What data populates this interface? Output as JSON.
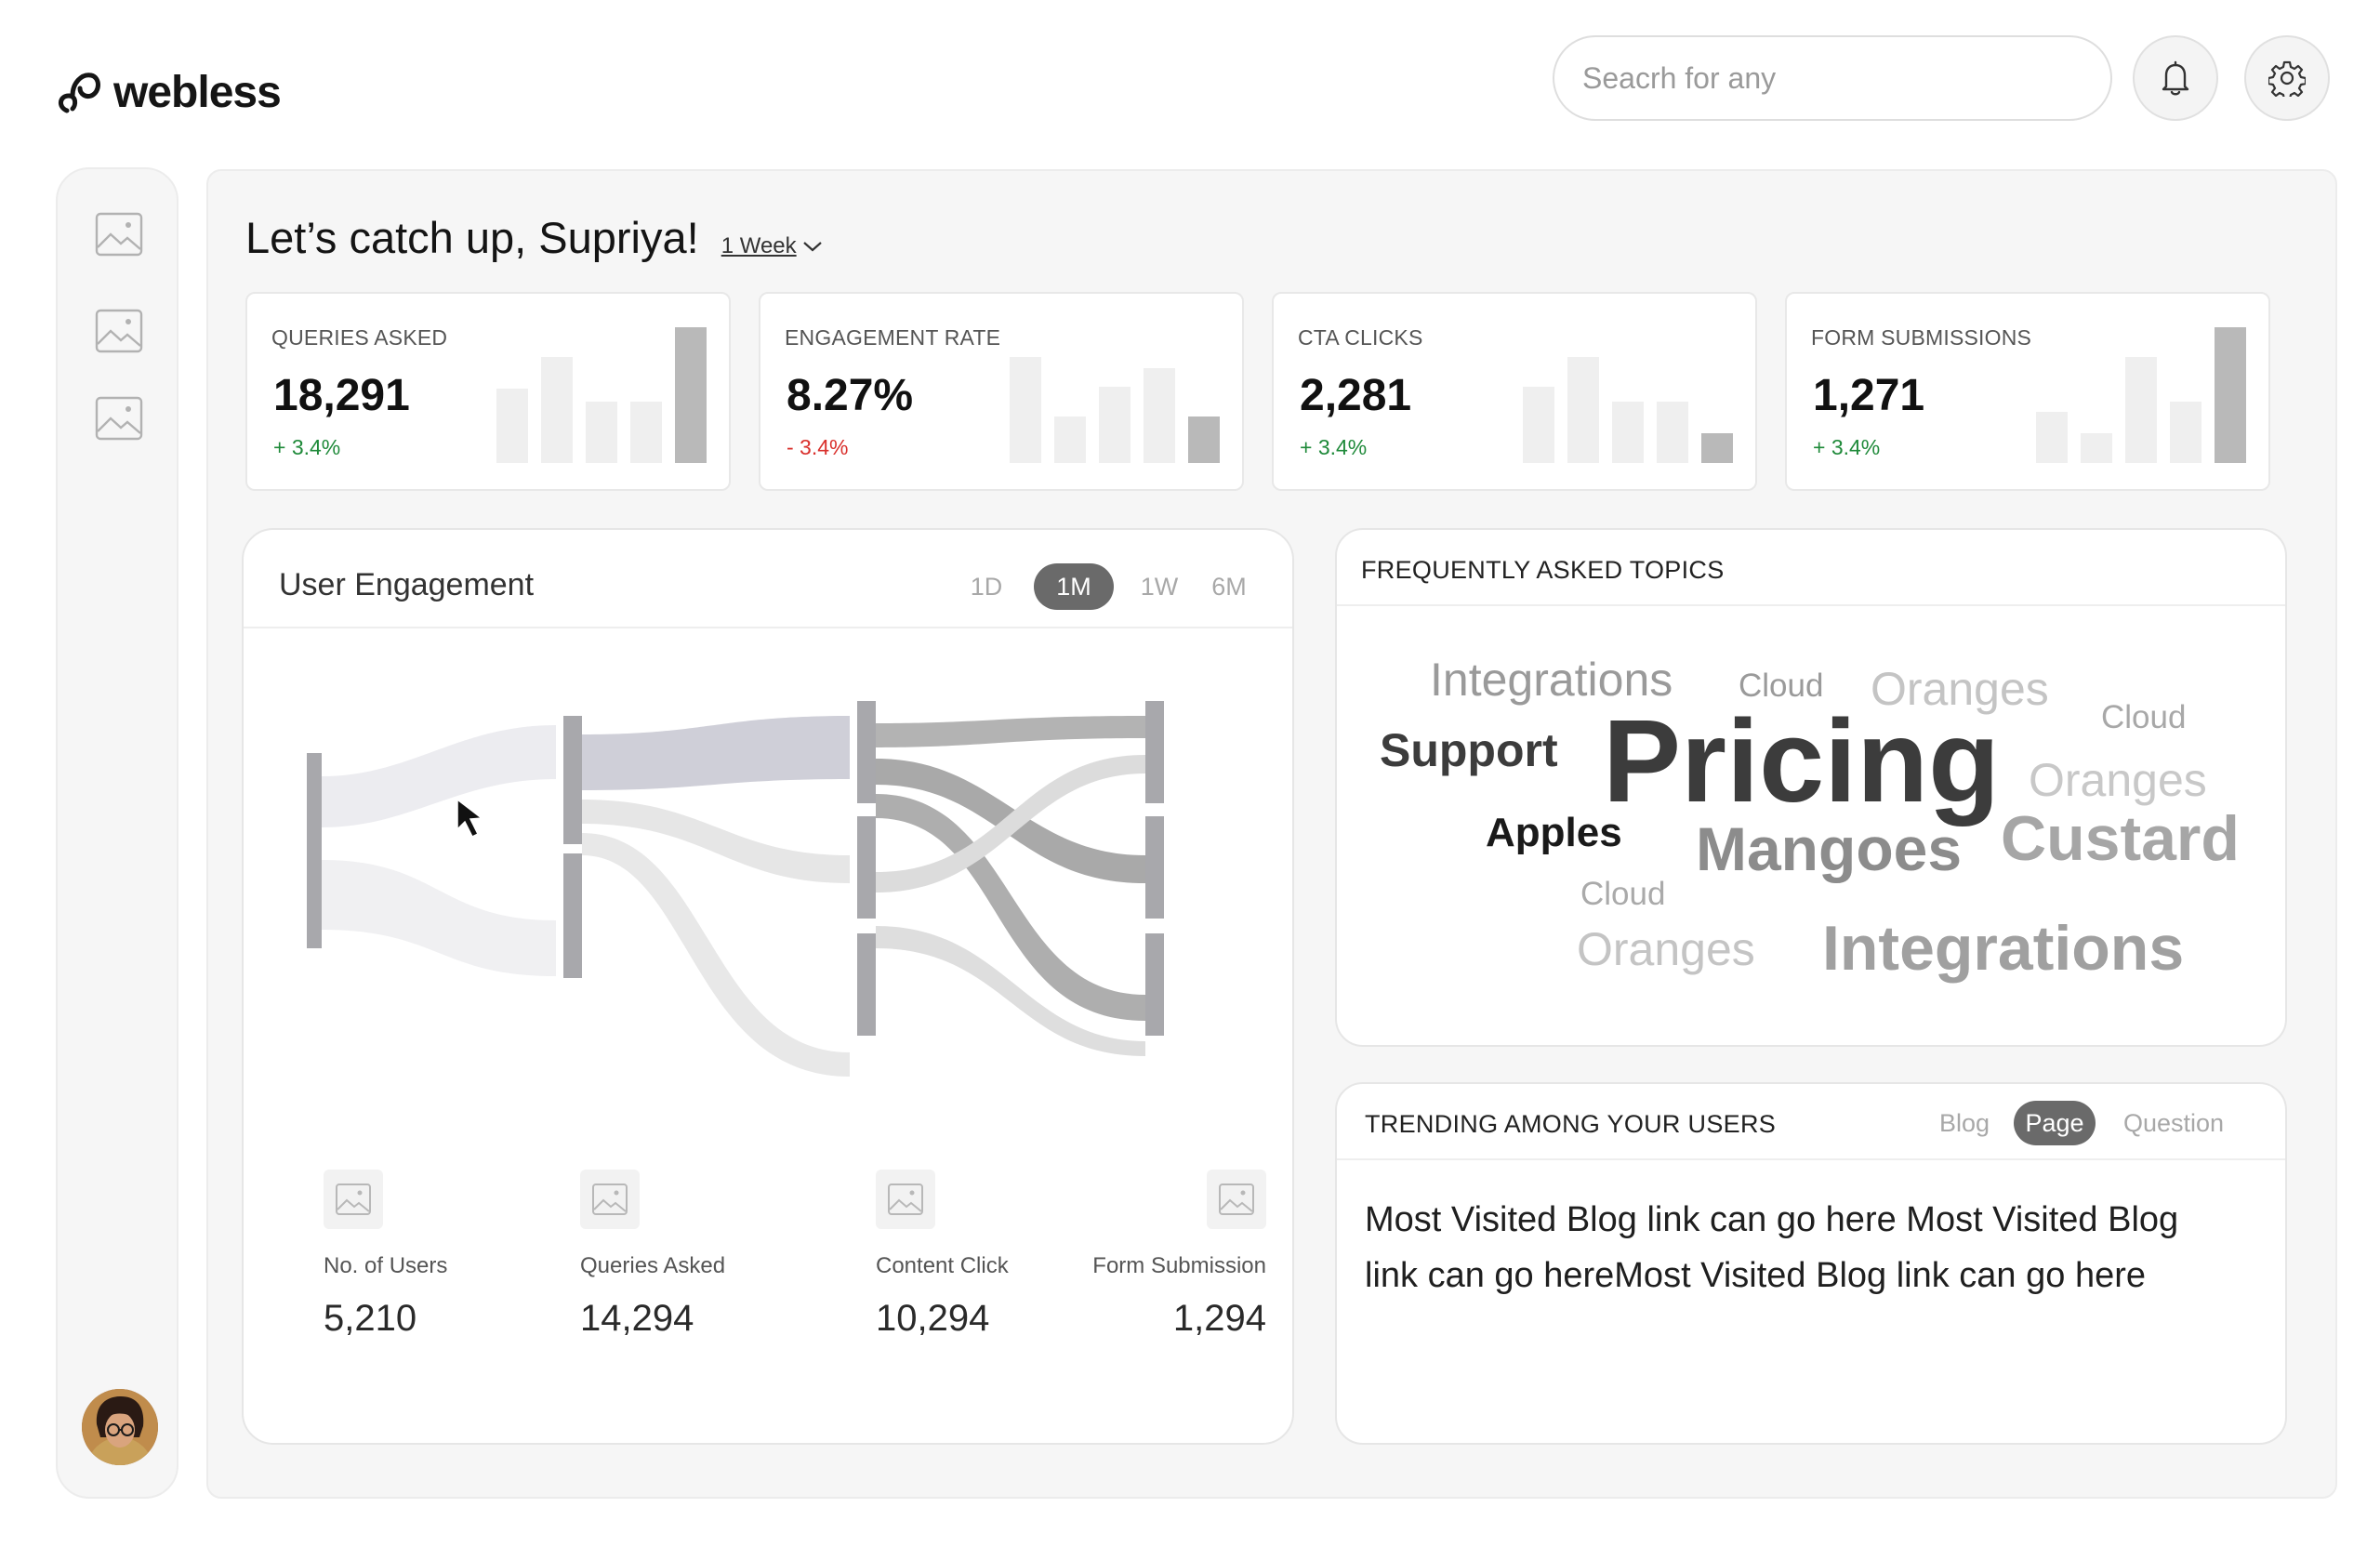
{
  "header": {
    "logo_text": "webless",
    "search_placeholder": "Seacrh for any"
  },
  "greeting": {
    "title": "Let’s catch up, Supriya!",
    "period": "1 Week"
  },
  "kpis": [
    {
      "label": "QUERIES ASKED",
      "value": "18,291",
      "delta": "+ 3.4%",
      "trend": "up",
      "bars": [
        0.55,
        0.78,
        0.45,
        0.45,
        1.0
      ],
      "highlight": 4
    },
    {
      "label": "ENGAGEMENT RATE",
      "value": "8.27%",
      "delta": "- 3.4%",
      "trend": "down",
      "bars": [
        0.78,
        0.34,
        0.56,
        0.7,
        0.34
      ],
      "highlight": 4
    },
    {
      "label": "CTA CLICKS",
      "value": "2,281",
      "delta": "+ 3.4%",
      "trend": "up",
      "bars": [
        0.56,
        0.78,
        0.45,
        0.45,
        0.22
      ],
      "highlight": 4
    },
    {
      "label": "FORM SUBMISSIONS",
      "value": "1,271",
      "delta": "+ 3.4%",
      "trend": "up",
      "bars": [
        0.38,
        0.22,
        0.78,
        0.45,
        1.0
      ],
      "highlight": 4
    }
  ],
  "engagement": {
    "title": "User Engagement",
    "ranges": [
      "1D",
      "1M",
      "1W",
      "6M"
    ],
    "active_range": "1M",
    "stats": [
      {
        "label": "No. of Users",
        "value": "5,210"
      },
      {
        "label": "Queries Asked",
        "value": "14,294"
      },
      {
        "label": "Content Click",
        "value": "10,294"
      },
      {
        "label": "Form Submission",
        "value": "1,294"
      }
    ]
  },
  "topics": {
    "title": "FREQUENTLY ASKED TOPICS",
    "words": [
      {
        "text": "Integrations",
        "color": "#9a9a9a"
      },
      {
        "text": "Cloud",
        "color": "#9a9a9a"
      },
      {
        "text": "Oranges",
        "color": "#c4c4c4"
      },
      {
        "text": "Cloud",
        "color": "#a8a8a8"
      },
      {
        "text": "Support",
        "color": "#3c3c3c"
      },
      {
        "text": "Pricing",
        "color": "#3c3c3c"
      },
      {
        "text": "Oranges",
        "color": "#c8c8c8"
      },
      {
        "text": "Apples",
        "color": "#1a1a1a"
      },
      {
        "text": "Mangoes",
        "color": "#8c8c8c"
      },
      {
        "text": "Custard",
        "color": "#a6a6a6"
      },
      {
        "text": "Cloud",
        "color": "#aaaaaa"
      },
      {
        "text": "Oranges",
        "color": "#c4c4c4"
      },
      {
        "text": "Integrations",
        "color": "#a0a0a0"
      }
    ]
  },
  "trending": {
    "title": "TRENDING AMONG YOUR USERS",
    "tabs": [
      "Blog",
      "Page",
      "Question"
    ],
    "active_tab": "Page",
    "text": "Most Visited Blog link can go here Most Visited Blog link can go hereMost Visited Blog link can go here"
  },
  "icons": {
    "bell": "bell-icon",
    "settings": "gear-icon",
    "sidebar": [
      "image-icon",
      "image-icon",
      "image-icon"
    ]
  }
}
